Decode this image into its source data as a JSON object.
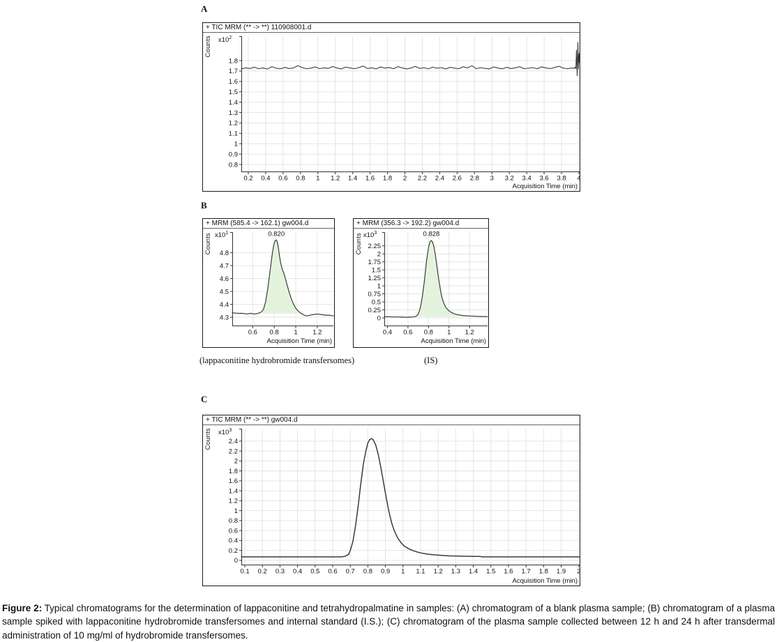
{
  "section_labels": {
    "a": "A",
    "b": "B",
    "c": "C"
  },
  "subcaptions": {
    "b1": "(lappaconitine hydrobromide transfersomes)",
    "b2": "(IS)"
  },
  "caption": {
    "label": "Figure 2:",
    "text": " Typical chromatograms for the determination of lappaconitine and tetrahydropalmatine in samples: (A) chromatogram of a blank plasma sample; (B) chromatogram of a plasma sample spiked with lappaconitine hydrobromide transfersomes and internal standard (I.S.); (C) chromatogram of the plasma sample collected between 12 h and 24 h after transdermal administration of 10 mg/ml of hydrobromide transfersomes."
  },
  "colors": {
    "grid": "#e2e6e1",
    "axis": "#333333",
    "trace": "#3b3b3b",
    "peak_fill": "#e4f3dd",
    "panel_border": "#1a1a1a",
    "header_rule": "#666666",
    "text": "#111111"
  },
  "chart_data": [
    {
      "id": "A",
      "type": "line",
      "header": "+ TIC MRM (** -> **) 110908001.d",
      "y_axis_label": "Counts",
      "scale_label": "x10",
      "scale_exp": "2",
      "x_label": "Acquisition Time (min)",
      "xlim": [
        0.12,
        4.008
      ],
      "ylim": [
        0.726,
        2.035
      ],
      "x_ticks": [
        0.2,
        0.4,
        0.6,
        0.8,
        1,
        1.2,
        1.4,
        1.6,
        1.8,
        2,
        2.2,
        2.4,
        2.6,
        2.8,
        3,
        3.2,
        3.4,
        3.6,
        3.8,
        4
      ],
      "x_tick_labels": [
        "0.2",
        "0.4",
        "0.6",
        "0.8",
        "1",
        "1.2",
        "1.4",
        "1.6",
        "1.8",
        "2",
        "2.2",
        "2.4",
        "2.6",
        "2.8",
        "3",
        "3.2",
        "3.4",
        "3.6",
        "3.8",
        "4"
      ],
      "y_ticks": [
        1.8,
        1.7,
        1.6,
        1.5,
        1.4,
        1.3,
        1.2,
        1.1,
        1,
        0.9,
        0.8
      ],
      "y_tick_labels": [
        "1.8",
        "1.7",
        "1.6",
        "1.5",
        "1.4",
        "1.3",
        "1.2",
        "1.1",
        "1",
        "0.9",
        "0.8"
      ],
      "trace_width": 1.1,
      "trace": {
        "x0": 0.12,
        "dx": 0.05,
        "y": [
          1.72,
          1.731,
          1.724,
          1.738,
          1.722,
          1.73,
          1.719,
          1.742,
          1.728,
          1.721,
          1.735,
          1.724,
          1.73,
          1.752,
          1.733,
          1.722,
          1.728,
          1.74,
          1.723,
          1.731,
          1.726,
          1.744,
          1.729,
          1.72,
          1.738,
          1.73,
          1.722,
          1.733,
          1.748,
          1.724,
          1.731,
          1.721,
          1.74,
          1.728,
          1.734,
          1.722,
          1.742,
          1.73,
          1.72,
          1.729,
          1.745,
          1.725,
          1.732,
          1.721,
          1.738,
          1.727,
          1.733,
          1.72,
          1.736,
          1.728,
          1.722,
          1.741,
          1.73,
          1.751,
          1.723,
          1.732,
          1.726,
          1.72,
          1.739,
          1.729,
          1.721,
          1.736,
          1.724,
          1.731,
          1.742,
          1.722,
          1.727,
          1.733,
          1.721,
          1.74,
          1.73,
          1.723,
          1.734,
          1.746,
          1.728,
          1.722,
          1.73
        ],
        "points": [
          [
            3.945,
            1.725
          ],
          [
            3.955,
            1.738
          ],
          [
            3.965,
            1.722
          ],
          [
            3.972,
            1.9
          ],
          [
            3.98,
            1.655
          ],
          [
            3.988,
            1.975
          ],
          [
            3.995,
            1.72
          ],
          [
            4.002,
            1.87
          ],
          [
            4.008,
            1.78
          ]
        ]
      }
    },
    {
      "id": "B1",
      "type": "line",
      "header": "+ MRM (585.4 -> 162.1) gw004.d",
      "y_axis_label": "Counts",
      "scale_label": "x10",
      "scale_exp": "1",
      "x_label": "Acquisition Time (min)",
      "peak": {
        "rt_label": "0.820",
        "x": 0.82,
        "apex_y": 4.9,
        "label_y": 4.93
      },
      "xlim": [
        0.41,
        1.35
      ],
      "ylim": [
        4.23,
        4.96
      ],
      "x_ticks": [
        0.6,
        0.8,
        1,
        1.2
      ],
      "x_tick_labels": [
        "0.6",
        "0.8",
        "1",
        "1.2"
      ],
      "y_ticks": [
        4.8,
        4.7,
        4.6,
        4.5,
        4.4,
        4.3
      ],
      "y_tick_labels": [
        "4.8",
        "4.7",
        "4.6",
        "4.5",
        "4.4",
        "4.3"
      ],
      "trace_width": 1.2,
      "peak_fill": {
        "x_start": 0.695,
        "x_end": 1.055,
        "base": 4.327
      },
      "trace": {
        "points": [
          [
            0.41,
            4.335
          ],
          [
            0.45,
            4.33
          ],
          [
            0.5,
            4.33
          ],
          [
            0.55,
            4.325
          ],
          [
            0.58,
            4.33
          ],
          [
            0.62,
            4.325
          ],
          [
            0.65,
            4.33
          ],
          [
            0.68,
            4.34
          ],
          [
            0.7,
            4.36
          ],
          [
            0.72,
            4.42
          ],
          [
            0.74,
            4.52
          ],
          [
            0.76,
            4.65
          ],
          [
            0.78,
            4.78
          ],
          [
            0.795,
            4.86
          ],
          [
            0.81,
            4.895
          ],
          [
            0.82,
            4.9
          ],
          [
            0.83,
            4.88
          ],
          [
            0.84,
            4.83
          ],
          [
            0.85,
            4.77
          ],
          [
            0.86,
            4.72
          ],
          [
            0.875,
            4.67
          ],
          [
            0.89,
            4.64
          ],
          [
            0.9,
            4.61
          ],
          [
            0.92,
            4.55
          ],
          [
            0.94,
            4.49
          ],
          [
            0.96,
            4.44
          ],
          [
            0.98,
            4.4
          ],
          [
            1.0,
            4.37
          ],
          [
            1.02,
            4.35
          ],
          [
            1.04,
            4.335
          ],
          [
            1.06,
            4.325
          ],
          [
            1.08,
            4.315
          ],
          [
            1.1,
            4.31
          ],
          [
            1.13,
            4.315
          ],
          [
            1.16,
            4.32
          ],
          [
            1.2,
            4.325
          ],
          [
            1.24,
            4.32
          ],
          [
            1.28,
            4.315
          ],
          [
            1.32,
            4.315
          ],
          [
            1.35,
            4.31
          ]
        ]
      }
    },
    {
      "id": "B2",
      "type": "line",
      "header": "+ MRM (356.3 -> 192.2) gw004.d",
      "y_axis_label": "Counts",
      "scale_label": "x10",
      "scale_exp": "3",
      "x_label": "Acquisition Time (min)",
      "peak": {
        "rt_label": "0.828",
        "x": 0.828,
        "apex_y": 2.42,
        "label_y": 2.56
      },
      "xlim": [
        0.37,
        1.375
      ],
      "ylim": [
        -0.26,
        2.68
      ],
      "x_ticks": [
        0.4,
        0.6,
        0.8,
        1,
        1.2
      ],
      "x_tick_labels": [
        "0.4",
        "0.6",
        "0.8",
        "1",
        "1.2"
      ],
      "y_ticks": [
        2.25,
        2,
        1.75,
        1.5,
        1.25,
        1,
        0.75,
        0.5,
        0.25,
        0
      ],
      "y_tick_labels": [
        "2.25",
        "2",
        "1.75",
        "1.5",
        "1.25",
        "1",
        "0.75",
        "0.5",
        "0.25",
        "0"
      ],
      "trace_width": 1.2,
      "peak_fill": {
        "x_start": 0.66,
        "x_end": 1.36,
        "base": 0.03
      },
      "trace": {
        "points": [
          [
            0.37,
            0.035
          ],
          [
            0.42,
            0.035
          ],
          [
            0.47,
            0.03
          ],
          [
            0.52,
            0.03
          ],
          [
            0.55,
            0.025
          ],
          [
            0.58,
            0.02
          ],
          [
            0.62,
            0.025
          ],
          [
            0.65,
            0.03
          ],
          [
            0.68,
            0.05
          ],
          [
            0.7,
            0.12
          ],
          [
            0.72,
            0.3
          ],
          [
            0.74,
            0.65
          ],
          [
            0.76,
            1.15
          ],
          [
            0.78,
            1.75
          ],
          [
            0.8,
            2.2
          ],
          [
            0.815,
            2.38
          ],
          [
            0.828,
            2.42
          ],
          [
            0.84,
            2.37
          ],
          [
            0.855,
            2.2
          ],
          [
            0.87,
            1.9
          ],
          [
            0.885,
            1.55
          ],
          [
            0.9,
            1.2
          ],
          [
            0.915,
            0.9
          ],
          [
            0.93,
            0.65
          ],
          [
            0.95,
            0.45
          ],
          [
            0.97,
            0.32
          ],
          [
            1.0,
            0.22
          ],
          [
            1.03,
            0.16
          ],
          [
            1.06,
            0.12
          ],
          [
            1.1,
            0.09
          ],
          [
            1.15,
            0.07
          ],
          [
            1.2,
            0.06
          ],
          [
            1.26,
            0.05
          ],
          [
            1.32,
            0.045
          ],
          [
            1.375,
            0.04
          ]
        ]
      }
    },
    {
      "id": "C",
      "type": "line",
      "header": "+ TIC MRM (** -> **) gw004.d",
      "y_axis_label": "Counts",
      "scale_label": "x10",
      "scale_exp": "3",
      "x_label": "Acquisition Time (min)",
      "peak": {
        "x": 0.82,
        "apex_y": 2.45
      },
      "xlim": [
        0.08,
        2.005
      ],
      "ylim": [
        -0.1,
        2.65
      ],
      "x_ticks": [
        0.1,
        0.2,
        0.3,
        0.4,
        0.5,
        0.6,
        0.7,
        0.8,
        0.9,
        1,
        1.1,
        1.2,
        1.3,
        1.4,
        1.5,
        1.6,
        1.7,
        1.8,
        1.9,
        2
      ],
      "x_tick_labels": [
        "0.1",
        "0.2",
        "0.3",
        "0.4",
        "0.5",
        "0.6",
        "0.7",
        "0.8",
        "0.9",
        "1",
        "1.1",
        "1.2",
        "1.3",
        "1.4",
        "1.5",
        "1.6",
        "1.7",
        "1.8",
        "1.9",
        "2"
      ],
      "y_ticks": [
        2.4,
        2.2,
        2,
        1.8,
        1.6,
        1.4,
        1.2,
        1,
        0.8,
        0.6,
        0.4,
        0.2,
        0
      ],
      "y_tick_labels": [
        "2.4",
        "2.2",
        "2",
        "1.8",
        "1.6",
        "1.4",
        "1.2",
        "1",
        "0.8",
        "0.6",
        "0.4",
        "0.2",
        "0"
      ],
      "trace_width": 1.5,
      "trace": {
        "points": [
          [
            0.08,
            0.07
          ],
          [
            0.2,
            0.07
          ],
          [
            0.3,
            0.07
          ],
          [
            0.4,
            0.07
          ],
          [
            0.5,
            0.07
          ],
          [
            0.6,
            0.07
          ],
          [
            0.65,
            0.07
          ],
          [
            0.67,
            0.08
          ],
          [
            0.69,
            0.12
          ],
          [
            0.7,
            0.2
          ],
          [
            0.715,
            0.38
          ],
          [
            0.73,
            0.7
          ],
          [
            0.745,
            1.1
          ],
          [
            0.76,
            1.55
          ],
          [
            0.775,
            1.95
          ],
          [
            0.79,
            2.22
          ],
          [
            0.8,
            2.36
          ],
          [
            0.81,
            2.43
          ],
          [
            0.82,
            2.45
          ],
          [
            0.83,
            2.43
          ],
          [
            0.845,
            2.32
          ],
          [
            0.86,
            2.12
          ],
          [
            0.875,
            1.85
          ],
          [
            0.89,
            1.55
          ],
          [
            0.905,
            1.25
          ],
          [
            0.92,
            0.98
          ],
          [
            0.935,
            0.76
          ],
          [
            0.95,
            0.6
          ],
          [
            0.97,
            0.45
          ],
          [
            0.99,
            0.35
          ],
          [
            1.01,
            0.28
          ],
          [
            1.04,
            0.22
          ],
          [
            1.07,
            0.18
          ],
          [
            1.1,
            0.15
          ],
          [
            1.14,
            0.125
          ],
          [
            1.18,
            0.11
          ],
          [
            1.22,
            0.1
          ],
          [
            1.27,
            0.09
          ],
          [
            1.32,
            0.085
          ],
          [
            1.38,
            0.08
          ],
          [
            1.44,
            0.078
          ],
          [
            1.45,
            0.07
          ],
          [
            1.55,
            0.07
          ],
          [
            1.7,
            0.07
          ],
          [
            1.85,
            0.07
          ],
          [
            2.005,
            0.07
          ]
        ]
      }
    }
  ]
}
